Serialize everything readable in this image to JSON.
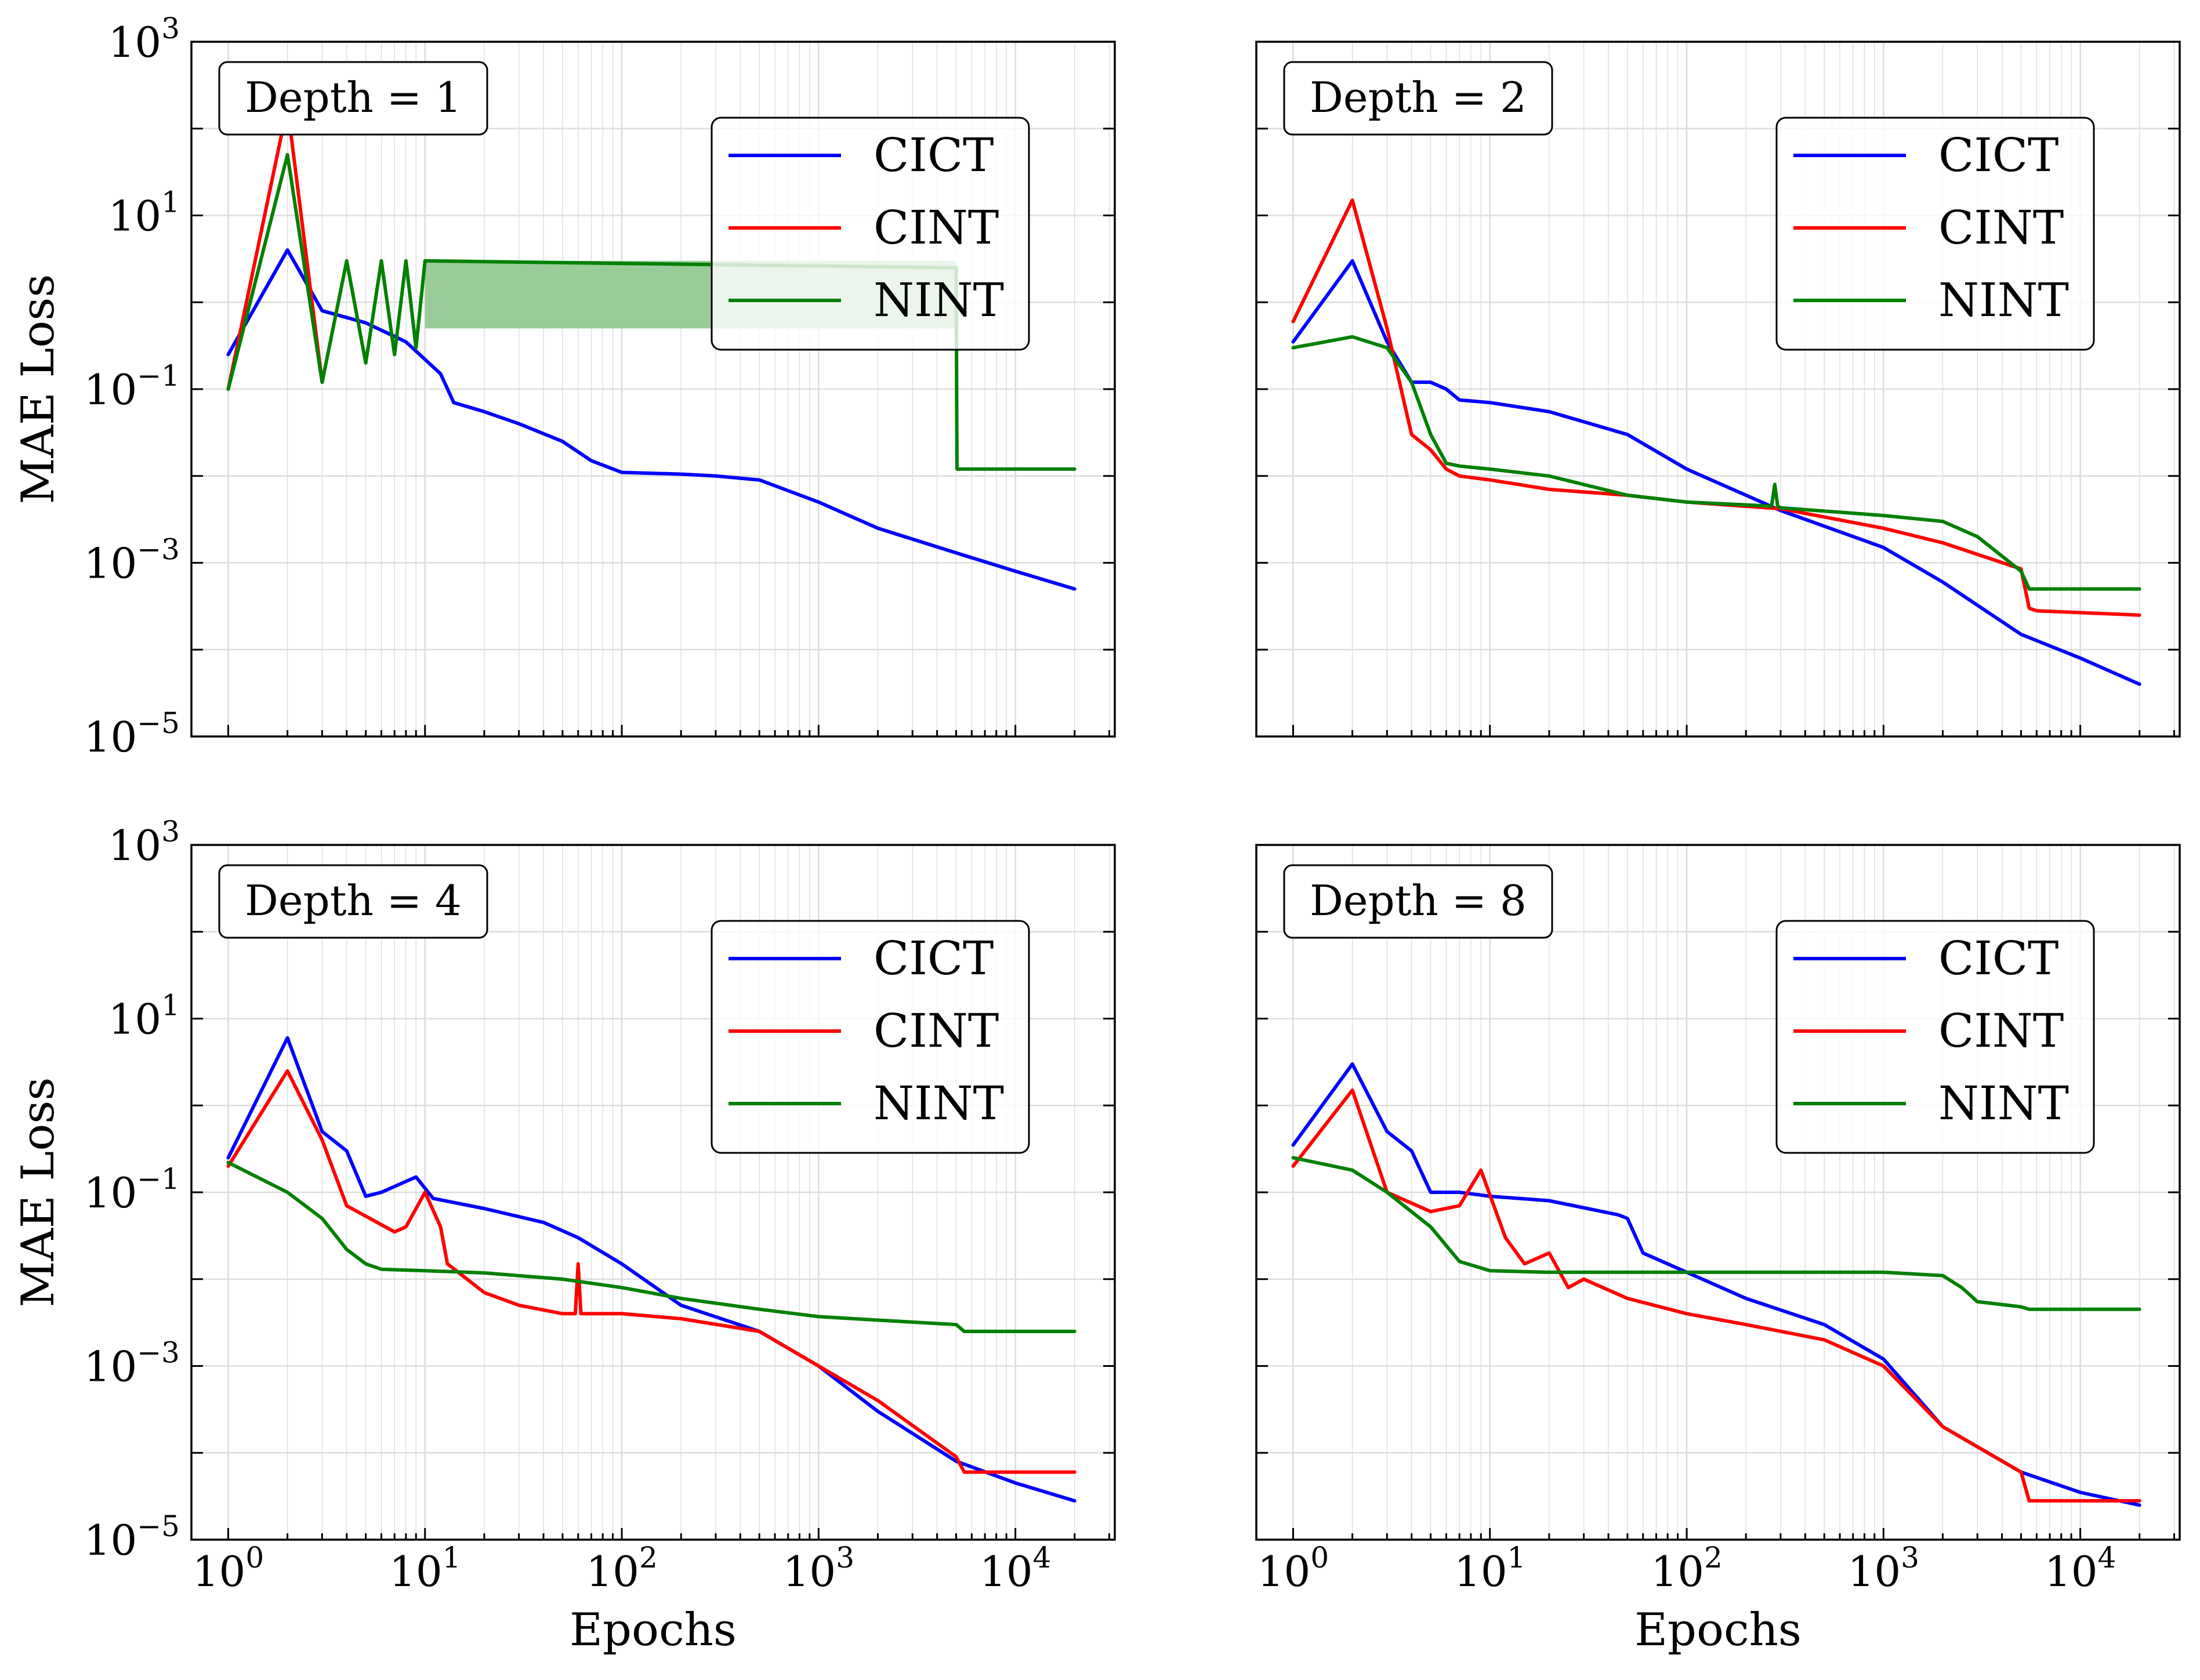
{
  "figure": {
    "ylabel_left": "MAE Loss",
    "xlabel_bottom": "Epochs",
    "colors": {
      "CICT": "#0000ff",
      "CINT": "#ff0000",
      "NINT": "#008000",
      "NINT_band": "#99cc99"
    }
  },
  "axis_ticks": {
    "x": [
      {
        "value": 1,
        "base": "10",
        "exp": "0"
      },
      {
        "value": 10,
        "base": "10",
        "exp": "1"
      },
      {
        "value": 100,
        "base": "10",
        "exp": "2"
      },
      {
        "value": 1000,
        "base": "10",
        "exp": "3"
      },
      {
        "value": 10000,
        "base": "10",
        "exp": "4"
      }
    ],
    "y": [
      {
        "value": 1e-05,
        "base": "10",
        "exp": "−5"
      },
      {
        "value": 0.001,
        "base": "10",
        "exp": "−3"
      },
      {
        "value": 0.1,
        "base": "10",
        "exp": "−1"
      },
      {
        "value": 10,
        "base": "10",
        "exp": "1"
      },
      {
        "value": 1000,
        "base": "10",
        "exp": "3"
      }
    ]
  },
  "chart_data": [
    {
      "type": "line",
      "title": "Depth = 1",
      "xlabel": "",
      "ylabel": "MAE Loss",
      "xscale": "log",
      "yscale": "log",
      "xlim": [
        0.65,
        32000
      ],
      "ylim": [
        1e-05,
        1000
      ],
      "grid": true,
      "legend": "top-right",
      "series": [
        {
          "name": "CICT",
          "x": [
            1,
            2,
            3,
            5,
            8,
            12,
            14,
            20,
            30,
            50,
            70,
            100,
            200,
            300,
            500,
            1000,
            2000,
            5000,
            10000,
            20000
          ],
          "y": [
            0.25,
            4,
            0.8,
            0.58,
            0.35,
            0.15,
            0.07,
            0.055,
            0.04,
            0.025,
            0.015,
            0.011,
            0.0105,
            0.01,
            0.009,
            0.005,
            0.0025,
            0.0013,
            0.0008,
            0.0005
          ]
        },
        {
          "name": "CINT",
          "x": [
            1,
            2,
            3
          ],
          "y": [
            0.1,
            180,
            0.12
          ]
        },
        {
          "name": "NINT",
          "x": [
            1,
            2,
            3,
            4,
            5,
            6,
            7,
            8,
            9,
            10,
            5000,
            5050,
            5500,
            20000
          ],
          "y": [
            0.1,
            50,
            0.12,
            3,
            0.2,
            3,
            0.25,
            3,
            0.3,
            3,
            2.5,
            0.012,
            0.012,
            0.012
          ],
          "band": {
            "x_start": 10,
            "x_end": 5000,
            "low": 0.5,
            "high": 3
          }
        }
      ]
    },
    {
      "type": "line",
      "title": "Depth = 2",
      "xlabel": "",
      "ylabel": "",
      "xscale": "log",
      "yscale": "log",
      "xlim": [
        0.65,
        32000
      ],
      "ylim": [
        1e-05,
        1000
      ],
      "grid": true,
      "legend": "top-right",
      "series": [
        {
          "name": "CICT",
          "x": [
            1,
            2,
            3,
            4,
            5,
            6,
            7,
            10,
            20,
            50,
            100,
            300,
            1000,
            2000,
            5000,
            10000,
            20000
          ],
          "y": [
            0.35,
            3,
            0.35,
            0.12,
            0.12,
            0.1,
            0.075,
            0.07,
            0.055,
            0.03,
            0.012,
            0.004,
            0.0015,
            0.0006,
            0.00015,
            8e-05,
            4e-05
          ]
        },
        {
          "name": "CINT",
          "x": [
            1,
            2,
            3,
            4,
            5,
            6,
            7,
            10,
            20,
            50,
            100,
            300,
            1000,
            2000,
            5000,
            5500,
            6000,
            20000
          ],
          "y": [
            0.6,
            15,
            0.5,
            0.03,
            0.02,
            0.012,
            0.01,
            0.009,
            0.007,
            0.006,
            0.005,
            0.0042,
            0.0025,
            0.0017,
            0.00085,
            0.0003,
            0.00028,
            0.00025
          ]
        },
        {
          "name": "NINT",
          "x": [
            1,
            2,
            3,
            4,
            5,
            6,
            7,
            10,
            20,
            50,
            100,
            270,
            280,
            290,
            300,
            1000,
            2000,
            3000,
            5000,
            5500,
            20000
          ],
          "y": [
            0.3,
            0.4,
            0.3,
            0.12,
            0.03,
            0.014,
            0.013,
            0.012,
            0.01,
            0.006,
            0.005,
            0.0045,
            0.008,
            0.0045,
            0.0043,
            0.0035,
            0.003,
            0.002,
            0.0008,
            0.0005,
            0.0005
          ]
        }
      ]
    },
    {
      "type": "line",
      "title": "Depth = 4",
      "xlabel": "Epochs",
      "ylabel": "MAE Loss",
      "xscale": "log",
      "yscale": "log",
      "xlim": [
        0.65,
        32000
      ],
      "ylim": [
        1e-05,
        1000
      ],
      "grid": true,
      "legend": "top-right",
      "series": [
        {
          "name": "CICT",
          "x": [
            1,
            2,
            3,
            4,
            5,
            6,
            9,
            11,
            20,
            40,
            60,
            100,
            200,
            500,
            1000,
            2000,
            5000,
            10000,
            20000
          ],
          "y": [
            0.25,
            6,
            0.5,
            0.3,
            0.09,
            0.1,
            0.15,
            0.085,
            0.065,
            0.045,
            0.03,
            0.015,
            0.005,
            0.0025,
            0.001,
            0.0003,
            8e-05,
            4.5e-05,
            2.8e-05
          ]
        },
        {
          "name": "CINT",
          "x": [
            1,
            2,
            3,
            4,
            7,
            8,
            10,
            12,
            13,
            20,
            30,
            50,
            58,
            60,
            62,
            70,
            100,
            200,
            500,
            1000,
            2000,
            5000,
            5500,
            20000
          ],
          "y": [
            0.2,
            2.5,
            0.4,
            0.07,
            0.035,
            0.04,
            0.1,
            0.04,
            0.015,
            0.007,
            0.005,
            0.004,
            0.004,
            0.015,
            0.004,
            0.004,
            0.004,
            0.0035,
            0.0025,
            0.001,
            0.0004,
            9e-05,
            6e-05,
            6e-05
          ]
        },
        {
          "name": "NINT",
          "x": [
            1,
            2,
            3,
            4,
            5,
            6,
            10,
            20,
            50,
            100,
            200,
            500,
            1000,
            3000,
            5000,
            5500,
            20000
          ],
          "y": [
            0.22,
            0.1,
            0.05,
            0.022,
            0.015,
            0.013,
            0.0125,
            0.0118,
            0.01,
            0.008,
            0.006,
            0.0045,
            0.0037,
            0.0032,
            0.003,
            0.0025,
            0.0025
          ]
        }
      ]
    },
    {
      "type": "line",
      "title": "Depth = 8",
      "xlabel": "Epochs",
      "ylabel": "",
      "xscale": "log",
      "yscale": "log",
      "xlim": [
        0.65,
        32000
      ],
      "ylim": [
        1e-05,
        1000
      ],
      "grid": true,
      "legend": "top-right",
      "series": [
        {
          "name": "CICT",
          "x": [
            1,
            2,
            3,
            4,
            5,
            7,
            10,
            20,
            45,
            50,
            60,
            100,
            200,
            500,
            1000,
            2000,
            5000,
            10000,
            20000
          ],
          "y": [
            0.35,
            3,
            0.5,
            0.3,
            0.1,
            0.1,
            0.09,
            0.08,
            0.055,
            0.05,
            0.02,
            0.012,
            0.006,
            0.003,
            0.0012,
            0.0002,
            6e-05,
            3.5e-05,
            2.5e-05
          ]
        },
        {
          "name": "CINT",
          "x": [
            1,
            2,
            3,
            5,
            7,
            9,
            12,
            15,
            20,
            25,
            30,
            50,
            100,
            200,
            500,
            1000,
            2000,
            5000,
            5500,
            20000
          ],
          "y": [
            0.2,
            1.5,
            0.1,
            0.06,
            0.07,
            0.18,
            0.03,
            0.015,
            0.02,
            0.008,
            0.01,
            0.006,
            0.004,
            0.003,
            0.002,
            0.001,
            0.0002,
            6e-05,
            2.8e-05,
            2.8e-05
          ]
        },
        {
          "name": "NINT",
          "x": [
            1,
            2,
            3,
            5,
            7,
            10,
            20,
            100,
            1000,
            2000,
            2500,
            3000,
            5000,
            5500,
            20000
          ],
          "y": [
            0.25,
            0.18,
            0.1,
            0.04,
            0.016,
            0.0125,
            0.012,
            0.012,
            0.012,
            0.011,
            0.008,
            0.0055,
            0.0048,
            0.0045,
            0.0045
          ]
        }
      ]
    }
  ]
}
